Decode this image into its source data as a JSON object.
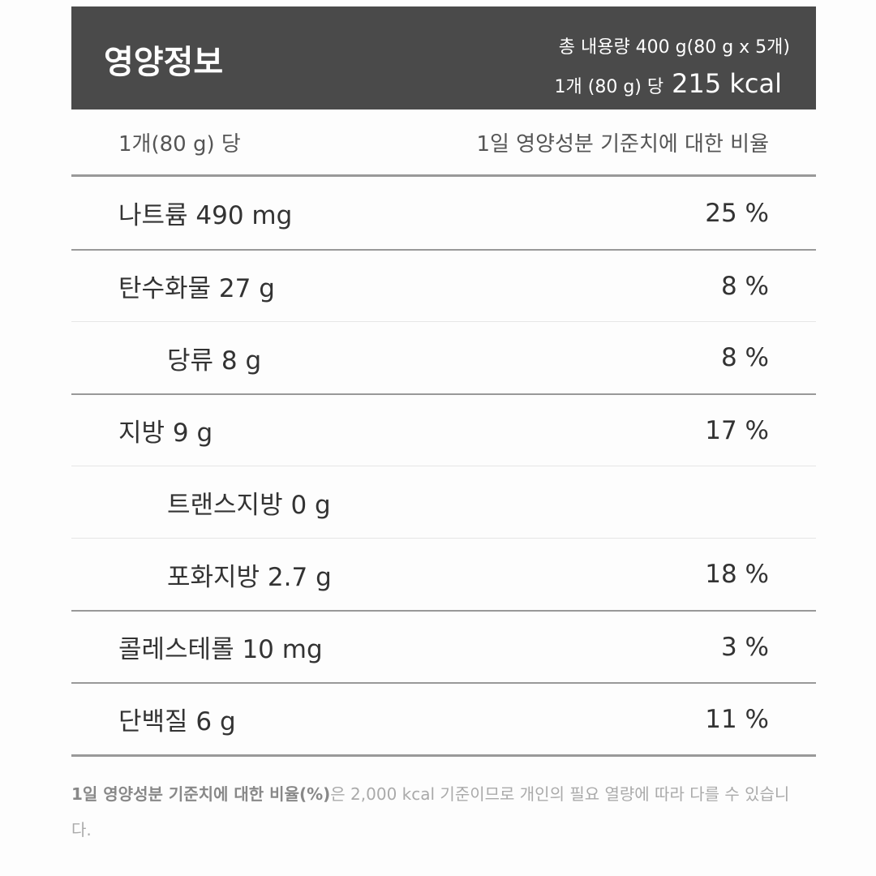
{
  "header": {
    "title": "영양정보",
    "total": "총 내용량 400 g(80 g x 5개)",
    "serving": "1개 (80 g) 당",
    "kcal": "215 kcal"
  },
  "subheader": {
    "left": "1개(80 g) 당",
    "right": "1일 영양성분 기준치에 대한 비율"
  },
  "rows": [
    {
      "label": "나트륨 490 mg",
      "percent": "25 %"
    },
    {
      "label": "탄수화물 27 g",
      "percent": "8 %",
      "sub": [
        {
          "label": "당류 8 g",
          "percent": "8 %"
        }
      ]
    },
    {
      "label": "지방 9 g",
      "percent": "17 %",
      "sub": [
        {
          "label": "트랜스지방 0 g"
        },
        {
          "label": "포화지방 2.7 g",
          "percent": "18 %"
        }
      ]
    },
    {
      "label": "콜레스테롤 10 mg",
      "percent": "3 %"
    },
    {
      "label": "단백질 6 g",
      "percent": "11 %"
    }
  ],
  "footnote": {
    "bold": "1일 영양성분 기준치에 대한 비율(%)",
    "text": "은 2,000 kcal 기준이므로 개인의 필요 열량에 따라 다를 수 있습니다."
  }
}
